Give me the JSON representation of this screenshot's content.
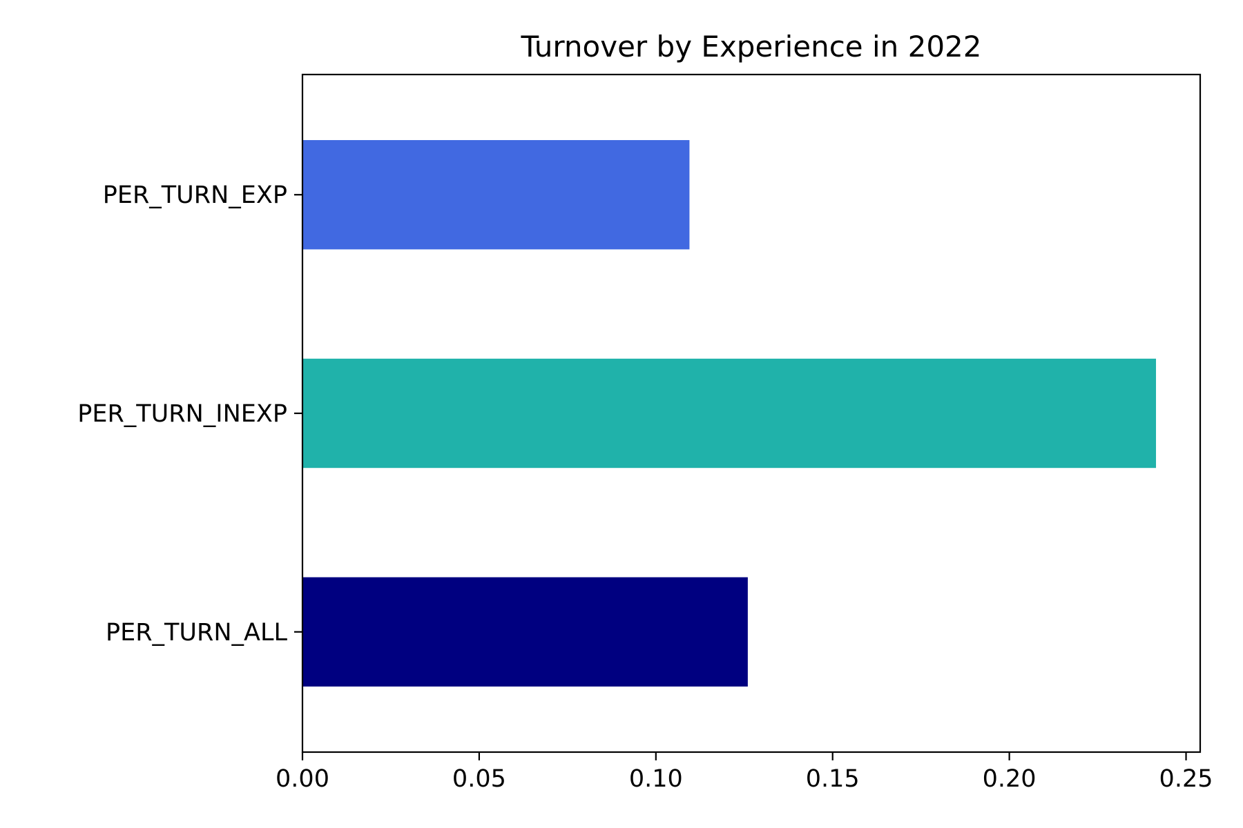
{
  "chart_data": {
    "type": "bar",
    "orientation": "horizontal",
    "title": "Turnover by Experience in 2022",
    "xlabel": "",
    "ylabel": "",
    "categories": [
      "PER_TURN_ALL",
      "PER_TURN_INEXP",
      "PER_TURN_EXP"
    ],
    "values": [
      0.126,
      0.2415,
      0.1095
    ],
    "colors": [
      "#000080",
      "#20B2AA",
      "#4169E1"
    ],
    "xlim": [
      0.0,
      0.254
    ],
    "xticks": [
      0.0,
      0.05,
      0.1,
      0.15,
      0.2,
      0.25
    ],
    "xtick_labels": [
      "0.00",
      "0.05",
      "0.10",
      "0.15",
      "0.20",
      "0.25"
    ],
    "grid": false,
    "legend": "none"
  }
}
